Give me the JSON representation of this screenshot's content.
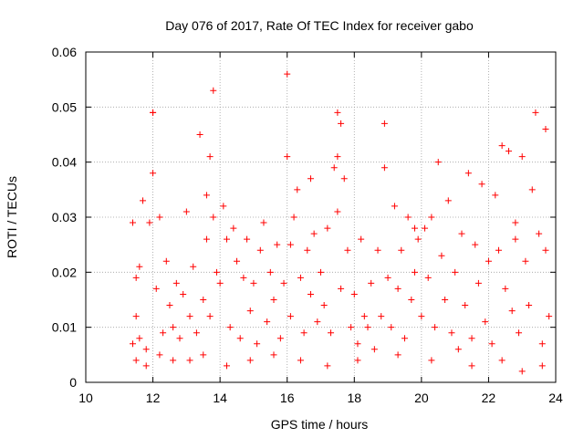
{
  "chart_data": {
    "type": "scatter",
    "title": "Day 076 of 2017, Rate Of TEC Index for receiver gabo",
    "xlabel": "GPS time / hours",
    "ylabel": "ROTI / TECUs",
    "xlim": [
      10,
      24
    ],
    "ylim": [
      0,
      0.06
    ],
    "grid": true,
    "marker": "+",
    "marker_color": "#ff0000",
    "x_ticks": [
      10,
      12,
      14,
      16,
      18,
      20,
      22,
      24
    ],
    "x_tick_labels": [
      "10",
      "12",
      "14",
      "16",
      "18",
      "20",
      "22",
      "24"
    ],
    "y_ticks": [
      0,
      0.01,
      0.02,
      0.03,
      0.04,
      0.05,
      0.06
    ],
    "y_tick_labels": [
      "0",
      "0.01",
      "0.02",
      "0.03",
      "0.04",
      "0.05",
      "0.06"
    ],
    "series": [
      {
        "name": "ROTI",
        "x": [
          11.4,
          11.4,
          11.5,
          11.5,
          11.6,
          11.6,
          11.7,
          11.8,
          11.9,
          12.0,
          12.0,
          12.1,
          12.2,
          12.3,
          12.4,
          12.5,
          12.6,
          12.7,
          12.8,
          12.9,
          13.0,
          13.1,
          13.2,
          13.3,
          13.4,
          13.5,
          13.6,
          13.7,
          13.7,
          13.8,
          13.8,
          13.9,
          14.0,
          14.1,
          14.2,
          14.3,
          14.4,
          14.5,
          14.6,
          14.7,
          14.8,
          14.9,
          15.0,
          15.1,
          15.2,
          15.3,
          15.4,
          15.5,
          15.6,
          15.7,
          15.8,
          15.9,
          16.0,
          16.0,
          16.1,
          16.1,
          16.2,
          16.3,
          16.4,
          16.5,
          16.6,
          16.7,
          16.8,
          16.9,
          17.0,
          17.1,
          17.2,
          17.3,
          17.4,
          17.5,
          17.5,
          17.6,
          17.6,
          17.7,
          17.8,
          17.9,
          18.0,
          18.1,
          18.2,
          18.3,
          18.4,
          18.5,
          18.6,
          18.7,
          18.8,
          18.9,
          18.9,
          19.0,
          19.1,
          19.2,
          19.3,
          19.4,
          19.5,
          19.6,
          19.7,
          19.8,
          19.9,
          20.0,
          20.1,
          20.2,
          20.3,
          20.4,
          20.5,
          20.6,
          20.7,
          20.8,
          20.9,
          21.0,
          21.1,
          21.2,
          21.3,
          21.4,
          21.5,
          21.6,
          21.7,
          21.8,
          21.9,
          22.0,
          22.1,
          22.2,
          22.3,
          22.4,
          22.5,
          22.6,
          22.7,
          22.8,
          22.9,
          23.0,
          23.1,
          23.2,
          23.3,
          23.4,
          23.5,
          23.6,
          23.7,
          23.7,
          23.8,
          11.5,
          11.8,
          12.2,
          12.6,
          13.1,
          13.5,
          14.2,
          14.9,
          15.6,
          16.4,
          17.2,
          18.1,
          19.3,
          20.3,
          21.5,
          22.4,
          23.0,
          23.6,
          12.0,
          13.6,
          16.7,
          17.5,
          19.8,
          22.8
        ],
        "y": [
          0.007,
          0.029,
          0.012,
          0.019,
          0.021,
          0.008,
          0.033,
          0.006,
          0.029,
          0.049,
          0.038,
          0.017,
          0.03,
          0.009,
          0.022,
          0.014,
          0.01,
          0.018,
          0.008,
          0.016,
          0.031,
          0.012,
          0.021,
          0.009,
          0.045,
          0.015,
          0.026,
          0.041,
          0.012,
          0.053,
          0.03,
          0.02,
          0.018,
          0.032,
          0.026,
          0.01,
          0.028,
          0.022,
          0.008,
          0.019,
          0.026,
          0.013,
          0.018,
          0.007,
          0.024,
          0.029,
          0.011,
          0.02,
          0.015,
          0.025,
          0.008,
          0.018,
          0.056,
          0.041,
          0.025,
          0.012,
          0.03,
          0.035,
          0.019,
          0.009,
          0.024,
          0.016,
          0.027,
          0.011,
          0.02,
          0.014,
          0.028,
          0.009,
          0.039,
          0.049,
          0.031,
          0.047,
          0.017,
          0.037,
          0.024,
          0.01,
          0.016,
          0.007,
          0.026,
          0.012,
          0.01,
          0.018,
          0.006,
          0.024,
          0.012,
          0.047,
          0.039,
          0.019,
          0.01,
          0.032,
          0.017,
          0.024,
          0.008,
          0.03,
          0.015,
          0.02,
          0.026,
          0.012,
          0.028,
          0.019,
          0.03,
          0.01,
          0.04,
          0.023,
          0.015,
          0.033,
          0.009,
          0.02,
          0.006,
          0.027,
          0.014,
          0.038,
          0.008,
          0.025,
          0.018,
          0.036,
          0.011,
          0.022,
          0.007,
          0.034,
          0.024,
          0.043,
          0.017,
          0.042,
          0.013,
          0.029,
          0.009,
          0.041,
          0.022,
          0.014,
          0.035,
          0.049,
          0.027,
          0.007,
          0.046,
          0.024,
          0.012,
          0.004,
          0.003,
          0.005,
          0.004,
          0.004,
          0.005,
          0.003,
          0.004,
          0.005,
          0.004,
          0.003,
          0.004,
          0.005,
          0.004,
          0.003,
          0.004,
          0.002,
          0.003,
          0.049,
          0.034,
          0.037,
          0.041,
          0.028,
          0.026
        ]
      }
    ]
  }
}
